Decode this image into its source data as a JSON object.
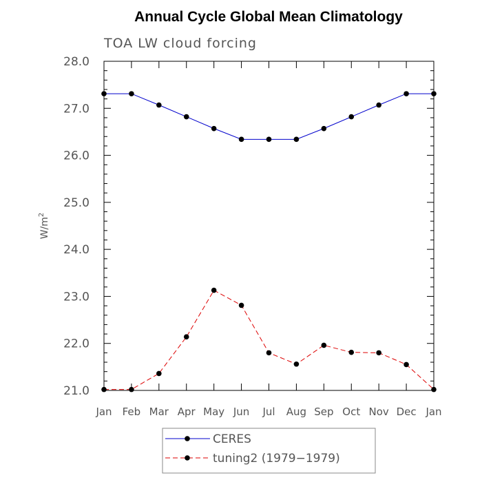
{
  "chart_data": {
    "type": "line",
    "title": "Annual Cycle Global Mean Climatology",
    "subtitle": "TOA LW cloud forcing",
    "xlabel": "",
    "ylabel": "W/m",
    "ylabel_superscript": "2",
    "ylim": [
      21.0,
      28.0
    ],
    "y_ticks": [
      "28.0",
      "27.0",
      "26.0",
      "25.0",
      "24.0",
      "23.0",
      "22.0",
      "21.0"
    ],
    "categories": [
      "Jan",
      "Feb",
      "Mar",
      "Apr",
      "May",
      "Jun",
      "Jul",
      "Aug",
      "Sep",
      "Oct",
      "Nov",
      "Dec",
      "Jan"
    ],
    "series": [
      {
        "name": "CERES",
        "color": "#0000cc",
        "dash": "solid",
        "values": [
          27.31,
          27.31,
          27.07,
          26.82,
          26.57,
          26.34,
          26.34,
          26.34,
          26.57,
          26.82,
          27.07,
          27.31,
          27.31
        ]
      },
      {
        "name": "tuning2 (1979−1979)",
        "color": "#dd0000",
        "dash": "dashed",
        "values": [
          21.02,
          21.02,
          21.36,
          22.14,
          23.13,
          22.81,
          21.8,
          21.56,
          21.96,
          21.81,
          21.8,
          21.55,
          21.02
        ]
      }
    ],
    "legend_position": "bottom-center"
  }
}
